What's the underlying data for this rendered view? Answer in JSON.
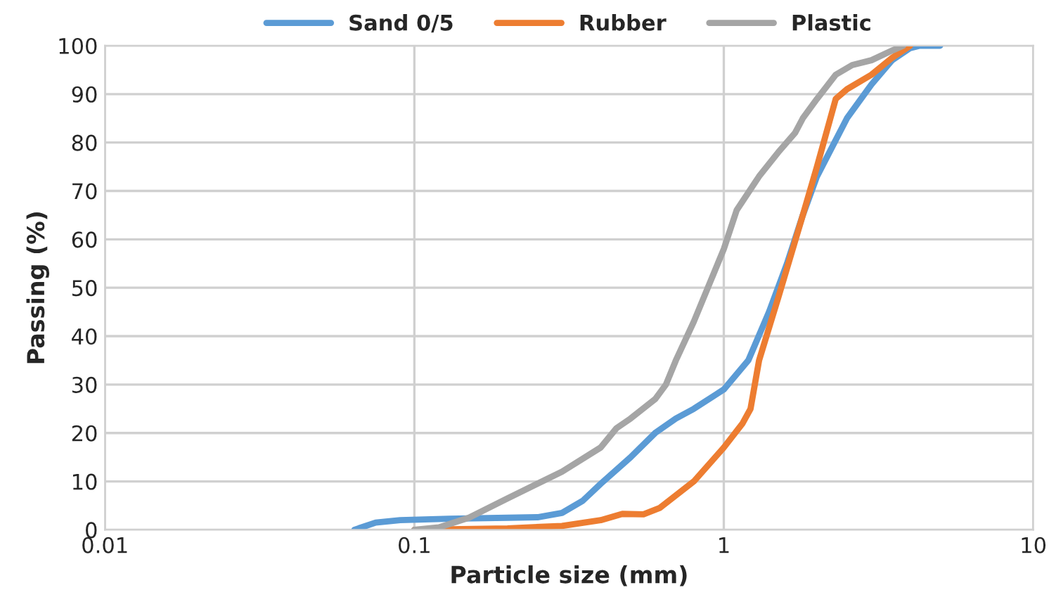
{
  "chart_data": {
    "type": "line",
    "xlabel": "Particle size (mm)",
    "ylabel": "Passing (%)",
    "log": "x",
    "xlim": [
      0.01,
      10
    ],
    "xticks": [
      0.01,
      0.1,
      1,
      10
    ],
    "ylim": [
      0,
      100
    ],
    "yticks": [
      0,
      10,
      20,
      30,
      40,
      50,
      60,
      70,
      80,
      90,
      100
    ],
    "grid": true,
    "legend": "top",
    "marker": "none",
    "line_style": "solid",
    "series": [
      {
        "name": "Sand 0/5",
        "color": "#5b9bd5",
        "x": [
          0.064,
          0.075,
          0.09,
          0.13,
          0.2,
          0.25,
          0.3,
          0.35,
          0.4,
          0.5,
          0.6,
          0.7,
          0.8,
          1,
          1.2,
          1.4,
          1.6,
          1.8,
          2,
          2.5,
          3,
          3.5,
          4,
          4.3,
          5
        ],
        "values": [
          0,
          1.5,
          2,
          2.3,
          2.5,
          2.6,
          3.5,
          6,
          9.5,
          15,
          20,
          23,
          25,
          29,
          35,
          45,
          55,
          65,
          73,
          85,
          92,
          97,
          99.5,
          100,
          100
        ]
      },
      {
        "name": "Rubber",
        "color": "#ed7d31",
        "x": [
          0.1,
          0.2,
          0.3,
          0.4,
          0.47,
          0.55,
          0.62,
          0.8,
          1,
          1.15,
          1.22,
          1.3,
          1.5,
          1.8,
          2,
          2.3,
          2.5,
          3,
          3.5,
          4
        ],
        "values": [
          0,
          0.3,
          0.8,
          2,
          3.3,
          3.2,
          4.5,
          10,
          17,
          22,
          25,
          35,
          48,
          65,
          75,
          89,
          91,
          94,
          97.5,
          100
        ]
      },
      {
        "name": "Plastic",
        "color": "#a5a5a5",
        "x": [
          0.1,
          0.12,
          0.15,
          0.2,
          0.3,
          0.4,
          0.45,
          0.5,
          0.6,
          0.65,
          0.7,
          0.8,
          1,
          1.1,
          1.3,
          1.5,
          1.7,
          1.8,
          2,
          2.3,
          2.6,
          3,
          3.5,
          3.8
        ],
        "values": [
          0,
          0.5,
          2.5,
          6.5,
          12,
          17,
          21,
          23,
          27,
          30,
          35,
          43,
          58,
          66,
          73,
          78,
          82,
          85,
          89,
          94,
          96,
          97,
          99,
          100
        ]
      }
    ]
  }
}
